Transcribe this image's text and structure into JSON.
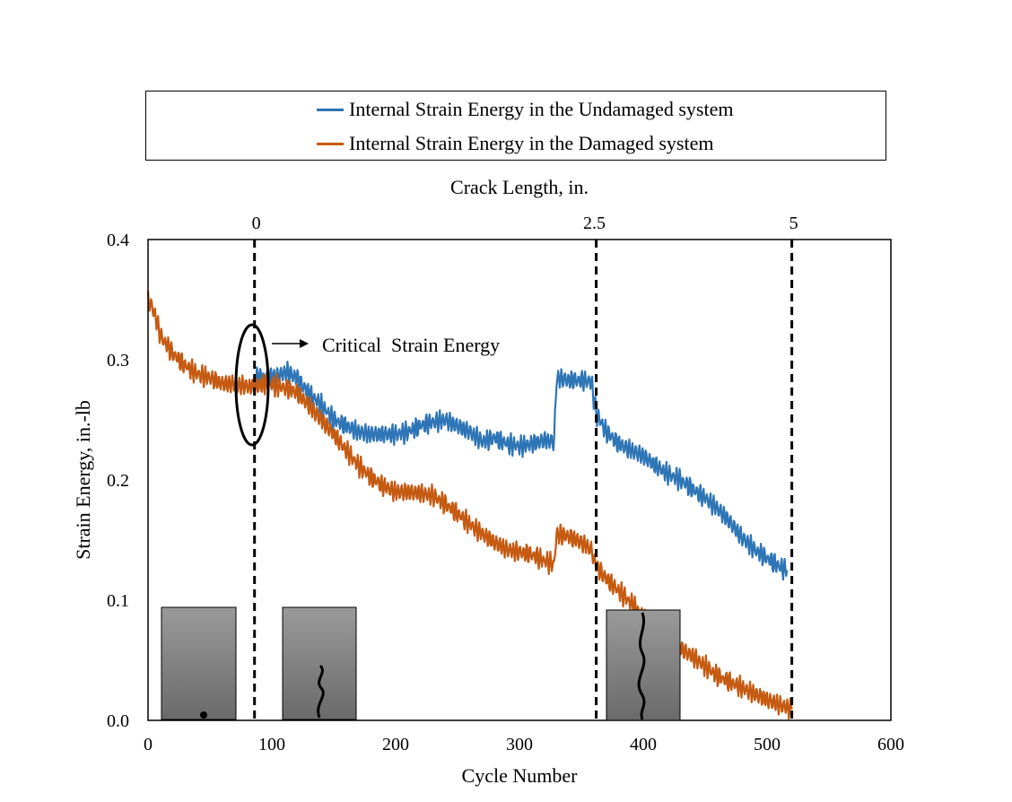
{
  "chart_data": {
    "type": "line",
    "title": "",
    "xlabel": "Cycle Number",
    "ylabel": "Strain Energy, in.-lb",
    "top_axis_label": "Crack Length, in.",
    "xlim": [
      0,
      600
    ],
    "ylim": [
      0,
      0.4
    ],
    "x_ticks": [
      "0",
      "100",
      "200",
      "300",
      "400",
      "500",
      "600"
    ],
    "y_ticks": [
      "0.0",
      "0.1",
      "0.2",
      "0.3",
      "0.4"
    ],
    "grid": false,
    "legend_position": "top",
    "crack_markers": [
      {
        "label": "0",
        "cycle": 86
      },
      {
        "label": "2.5",
        "cycle": 362
      },
      {
        "label": "5",
        "cycle": 520
      }
    ],
    "annotation": {
      "text": "Critical  Strain Energy",
      "cycle": 86,
      "value": 0.28
    },
    "series": [
      {
        "name": "Internal Strain Energy in the Undamaged system",
        "color": "#2E75B6",
        "x": [
          86,
          95,
          105,
          112,
          120,
          130,
          140,
          150,
          160,
          170,
          180,
          190,
          200,
          210,
          220,
          230,
          240,
          250,
          260,
          270,
          280,
          290,
          300,
          310,
          320,
          328,
          330,
          340,
          350,
          358,
          362,
          370,
          380,
          390,
          400,
          410,
          420,
          430,
          440,
          450,
          460,
          470,
          480,
          490,
          500,
          510,
          516
        ],
        "y": [
          0.285,
          0.285,
          0.287,
          0.29,
          0.285,
          0.272,
          0.262,
          0.25,
          0.245,
          0.24,
          0.238,
          0.238,
          0.238,
          0.24,
          0.245,
          0.248,
          0.25,
          0.245,
          0.24,
          0.232,
          0.235,
          0.23,
          0.228,
          0.23,
          0.233,
          0.232,
          0.285,
          0.283,
          0.283,
          0.282,
          0.255,
          0.24,
          0.23,
          0.225,
          0.22,
          0.212,
          0.205,
          0.2,
          0.192,
          0.185,
          0.176,
          0.165,
          0.152,
          0.142,
          0.135,
          0.128,
          0.125
        ]
      },
      {
        "name": "Internal Strain Energy in the Damaged system",
        "color": "#C55A11",
        "x": [
          0,
          5,
          10,
          20,
          30,
          40,
          50,
          60,
          70,
          80,
          86,
          95,
          105,
          112,
          120,
          130,
          140,
          150,
          160,
          170,
          180,
          190,
          200,
          210,
          220,
          230,
          240,
          250,
          260,
          270,
          280,
          290,
          300,
          310,
          320,
          328,
          330,
          340,
          350,
          358,
          362,
          370,
          380,
          390,
          400,
          410,
          420,
          430,
          440,
          450,
          460,
          470,
          480,
          490,
          500,
          510,
          520
        ],
        "y": [
          0.35,
          0.34,
          0.32,
          0.305,
          0.295,
          0.288,
          0.285,
          0.28,
          0.28,
          0.278,
          0.278,
          0.28,
          0.278,
          0.276,
          0.273,
          0.262,
          0.25,
          0.238,
          0.225,
          0.212,
          0.202,
          0.195,
          0.19,
          0.19,
          0.189,
          0.187,
          0.18,
          0.172,
          0.163,
          0.155,
          0.148,
          0.142,
          0.14,
          0.138,
          0.133,
          0.13,
          0.155,
          0.153,
          0.148,
          0.142,
          0.128,
          0.118,
          0.108,
          0.098,
          0.086,
          0.075,
          0.067,
          0.06,
          0.053,
          0.045,
          0.037,
          0.032,
          0.027,
          0.022,
          0.017,
          0.013,
          0.009
        ]
      }
    ]
  }
}
